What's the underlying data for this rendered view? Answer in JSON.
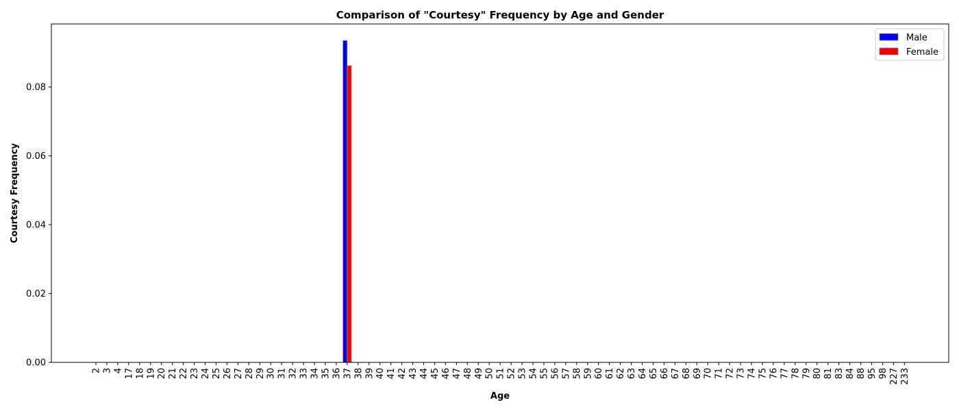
{
  "chart_data": {
    "type": "bar",
    "title": "Comparison of \"Courtesy\" Frequency by Age and Gender",
    "xlabel": "Age",
    "ylabel": "Courtesy Frequency",
    "ylim": [
      0,
      0.0983
    ],
    "yticks": [
      "0.00",
      "0.02",
      "0.04",
      "0.06",
      "0.08"
    ],
    "categories": [
      "2",
      "3",
      "4",
      "17",
      "18",
      "19",
      "20",
      "21",
      "22",
      "23",
      "24",
      "25",
      "26",
      "27",
      "28",
      "29",
      "30",
      "31",
      "32",
      "33",
      "34",
      "35",
      "36",
      "37",
      "38",
      "39",
      "40",
      "41",
      "42",
      "43",
      "44",
      "45",
      "46",
      "47",
      "48",
      "49",
      "50",
      "51",
      "52",
      "53",
      "54",
      "55",
      "56",
      "57",
      "58",
      "59",
      "60",
      "61",
      "62",
      "63",
      "64",
      "65",
      "66",
      "67",
      "68",
      "69",
      "70",
      "71",
      "72",
      "73",
      "74",
      "75",
      "76",
      "77",
      "78",
      "79",
      "80",
      "81",
      "83",
      "84",
      "88",
      "95",
      "98",
      "227",
      "233"
    ],
    "series": [
      {
        "name": "Male",
        "color": "#0000ee",
        "values": [
          0,
          0,
          0,
          0,
          0,
          0,
          0,
          0,
          0,
          0,
          0,
          0,
          0,
          0,
          0,
          0,
          0,
          0,
          0,
          0,
          0,
          0,
          0,
          0.0935,
          0,
          0,
          0,
          0,
          0,
          0,
          0,
          0,
          0,
          0,
          0,
          0,
          0,
          0,
          0,
          0,
          0,
          0,
          0,
          0,
          0,
          0,
          0,
          0,
          0,
          0,
          0,
          0,
          0,
          0,
          0,
          0,
          0,
          0,
          0,
          0,
          0,
          0,
          0,
          0,
          0,
          0,
          0,
          0,
          0,
          0,
          0,
          0,
          0,
          0,
          0
        ]
      },
      {
        "name": "Female",
        "color": "#ee0000",
        "values": [
          0,
          0,
          0,
          0,
          0,
          0,
          0,
          0,
          0,
          0,
          0,
          0,
          0,
          0,
          0,
          0,
          0,
          0,
          0,
          0,
          0,
          0,
          0,
          0.0862,
          0,
          0,
          0,
          0,
          0,
          0,
          0,
          0,
          0,
          0,
          0,
          0,
          0,
          0,
          0,
          0,
          0,
          0,
          0,
          0,
          0,
          0,
          0,
          0,
          0,
          0,
          0,
          0,
          0,
          0,
          0,
          0,
          0,
          0,
          0,
          0,
          0,
          0,
          0,
          0,
          0,
          0,
          0,
          0,
          0,
          0,
          0,
          0,
          0,
          0,
          0
        ]
      }
    ],
    "legend_position": "top-right",
    "grid": false
  }
}
